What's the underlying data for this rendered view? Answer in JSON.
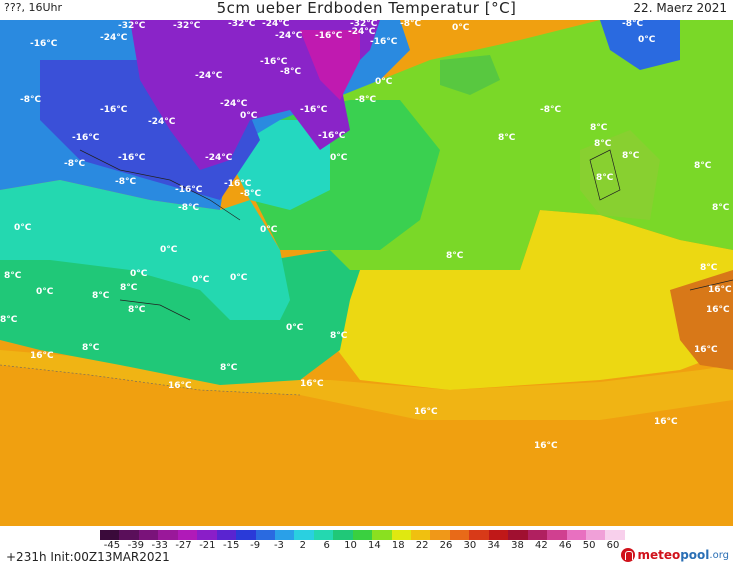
{
  "header": {
    "left_text": "???, 16Uhr",
    "title": "5cm ueber Erdboden Temperatur [°C]",
    "date": "22. Maerz 2021"
  },
  "footer": {
    "init_text": "+231h  Init:00Z13MAR2021",
    "logo_meteo": "meteo",
    "logo_pool": "pool",
    "logo_org": ".org",
    "logo_icon": "meteopool-logo-icon"
  },
  "colorbar": {
    "ticks": [
      "-45",
      "-39",
      "-33",
      "-27",
      "-21",
      "-15",
      "-9",
      "-3",
      "2",
      "6",
      "10",
      "14",
      "18",
      "22",
      "26",
      "30",
      "34",
      "38",
      "42",
      "46",
      "50",
      "60"
    ],
    "colors": [
      "#3a0a3a",
      "#5a0f5a",
      "#7a137a",
      "#9a189a",
      "#b01ab8",
      "#8a1ec8",
      "#5a24d0",
      "#2a3ad8",
      "#2a6ae0",
      "#2aa0e8",
      "#2ad0e0",
      "#24d8b0",
      "#20c878",
      "#3ad040",
      "#8ae020",
      "#e0e810",
      "#f0c010",
      "#f09818",
      "#e86a18",
      "#d83a18",
      "#c01818",
      "#a01030",
      "#b02060",
      "#d04090",
      "#e870c0",
      "#f0a0d8",
      "#f8d0ec"
    ]
  },
  "map_labels": [
    {
      "text": "-32°C"
    },
    {
      "text": "-32°C"
    },
    {
      "text": "-32°C"
    },
    {
      "text": "-24°C"
    },
    {
      "text": "-16°C"
    },
    {
      "text": "-24°C"
    },
    {
      "text": "-24°C"
    },
    {
      "text": "-16°C"
    },
    {
      "text": "-24°C"
    },
    {
      "text": "-16°C"
    },
    {
      "text": "0°C"
    },
    {
      "text": "-8°C"
    },
    {
      "text": "0°C"
    },
    {
      "text": "-32°C"
    },
    {
      "text": "-16°C"
    },
    {
      "text": "-8°C"
    },
    {
      "text": "-24°C"
    },
    {
      "text": "0°C"
    },
    {
      "text": "-8°C"
    },
    {
      "text": "-16°C"
    },
    {
      "text": "-24°C"
    },
    {
      "text": "-8°C"
    },
    {
      "text": "0°C"
    },
    {
      "text": "-16°C"
    },
    {
      "text": "-24°C"
    },
    {
      "text": "-16°C"
    },
    {
      "text": "0°C"
    },
    {
      "text": "-16°C"
    },
    {
      "text": "-8°C"
    },
    {
      "text": "-16°C"
    },
    {
      "text": "-24°C"
    },
    {
      "text": "-8°C"
    },
    {
      "text": "-16°C"
    },
    {
      "text": "-8°C"
    },
    {
      "text": "-16°C"
    },
    {
      "text": "-8°C"
    },
    {
      "text": "-8°C"
    },
    {
      "text": "0°C"
    },
    {
      "text": "0°C"
    },
    {
      "text": "8°C"
    },
    {
      "text": "0°C"
    },
    {
      "text": "8°C"
    },
    {
      "text": "0°C"
    },
    {
      "text": "0°C"
    },
    {
      "text": "8°C"
    },
    {
      "text": "8°C"
    },
    {
      "text": "0°C"
    },
    {
      "text": "8°C"
    },
    {
      "text": "8°C"
    },
    {
      "text": "16°C"
    },
    {
      "text": "8°C"
    },
    {
      "text": "8°C"
    },
    {
      "text": "16°C"
    },
    {
      "text": "16°C"
    },
    {
      "text": "16°C"
    },
    {
      "text": "16°C"
    },
    {
      "text": "8°C"
    },
    {
      "text": "8°C"
    },
    {
      "text": "8°C"
    },
    {
      "text": "8°C"
    },
    {
      "text": "8°C"
    },
    {
      "text": "8°C"
    },
    {
      "text": "8°C"
    },
    {
      "text": "8°C"
    },
    {
      "text": "16°C"
    },
    {
      "text": "16°C"
    },
    {
      "text": "16°C"
    },
    {
      "text": "16°C"
    },
    {
      "text": "8°C"
    },
    {
      "text": "-8°C"
    },
    {
      "text": "0°C"
    },
    {
      "text": "0°C"
    }
  ]
}
